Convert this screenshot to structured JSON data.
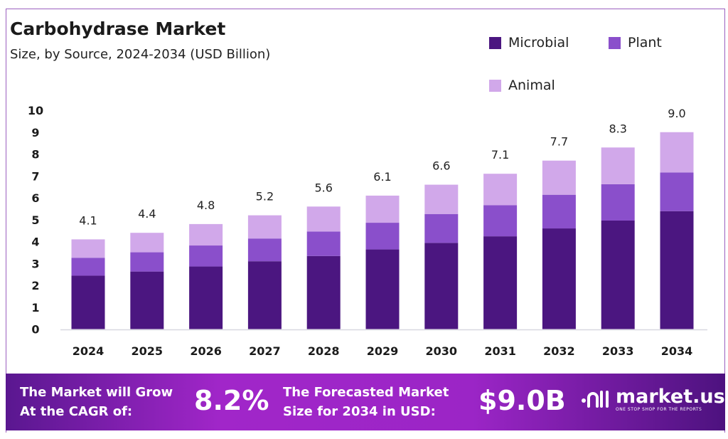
{
  "chart_data": {
    "type": "bar",
    "stacked": true,
    "title": "Carbohydrase Market",
    "subtitle": "Size, by Source, 2024-2034 (USD Billion)",
    "categories": [
      "2024",
      "2025",
      "2026",
      "2027",
      "2028",
      "2029",
      "2030",
      "2031",
      "2032",
      "2033",
      "2034"
    ],
    "series": [
      {
        "name": "Microbial",
        "color": "#4b1680",
        "values": [
          2.44,
          2.63,
          2.86,
          3.1,
          3.34,
          3.64,
          3.94,
          4.24,
          4.6,
          4.96,
          5.39
        ]
      },
      {
        "name": "Plant",
        "color": "#8a4fcb",
        "values": [
          0.82,
          0.88,
          0.96,
          1.04,
          1.12,
          1.22,
          1.32,
          1.42,
          1.54,
          1.66,
          1.77
        ]
      },
      {
        "name": "Animal",
        "color": "#d1a8ea",
        "values": [
          0.84,
          0.89,
          0.98,
          1.06,
          1.14,
          1.24,
          1.34,
          1.44,
          1.56,
          1.68,
          1.84
        ]
      }
    ],
    "totals": [
      "4.1",
      "4.4",
      "4.8",
      "5.2",
      "5.6",
      "6.1",
      "6.6",
      "7.1",
      "7.7",
      "8.3",
      "9.0"
    ],
    "yticks": [
      "0",
      "1",
      "2",
      "3",
      "4",
      "5",
      "6",
      "7",
      "8",
      "9",
      "10"
    ],
    "ylim": [
      0,
      10
    ],
    "grid": false,
    "legend_position": "top-right"
  },
  "footer": {
    "cagr_label_line1": "The Market will Grow",
    "cagr_label_line2": "At the CAGR of:",
    "cagr_value": "8.2%",
    "forecast_label_line1": "The Forecasted Market",
    "forecast_label_line2": "Size for 2034 in USD:",
    "forecast_value": "$9.0B",
    "logo_name": "market.us",
    "logo_tagline": "ONE STOP SHOP FOR THE REPORTS"
  }
}
